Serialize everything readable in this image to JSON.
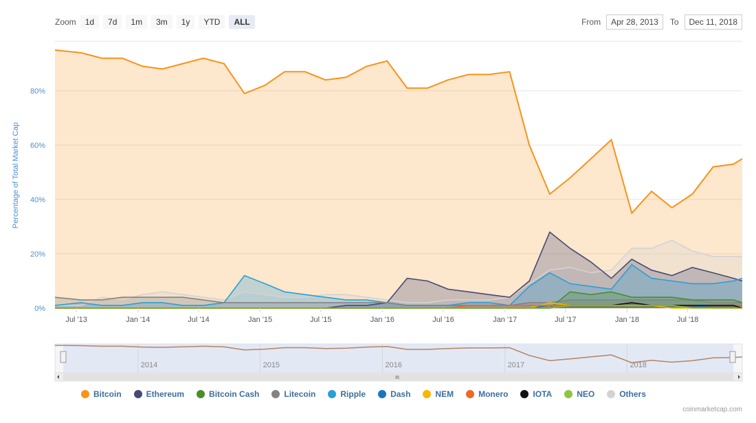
{
  "toolbar": {
    "zoom_label": "Zoom",
    "zoom_buttons": [
      "1d",
      "7d",
      "1m",
      "3m",
      "1y",
      "YTD",
      "ALL"
    ],
    "active_zoom": "ALL",
    "from_label": "From",
    "from_value": "Apr 28, 2013",
    "to_label": "To",
    "to_value": "Dec 11, 2018"
  },
  "credit": "coinmarketcap.com",
  "navigator": {
    "year_labels": [
      "2014",
      "2015",
      "2016",
      "2017",
      "2018"
    ],
    "scroll_grip": "III"
  },
  "chart_data": {
    "type": "area",
    "ylabel": "Percentage of Total Market Cap",
    "ylim": [
      0,
      100
    ],
    "y_ticks": [
      "0%",
      "20%",
      "40%",
      "60%",
      "80%"
    ],
    "x_ticks": [
      "Jul '13",
      "Jan '14",
      "Jul '14",
      "Jan '15",
      "Jul '15",
      "Jan '16",
      "Jul '16",
      "Jan '17",
      "Jul '17",
      "Jan '18",
      "Jul '18"
    ],
    "x": [
      "2013-05",
      "2013-07",
      "2013-09",
      "2013-11",
      "2014-01",
      "2014-03",
      "2014-05",
      "2014-07",
      "2014-09",
      "2014-11",
      "2015-01",
      "2015-03",
      "2015-05",
      "2015-07",
      "2015-09",
      "2015-11",
      "2016-01",
      "2016-03",
      "2016-05",
      "2016-07",
      "2016-09",
      "2016-11",
      "2017-01",
      "2017-03",
      "2017-05",
      "2017-07",
      "2017-09",
      "2017-11",
      "2018-01",
      "2018-03",
      "2018-05",
      "2018-07",
      "2018-09",
      "2018-11",
      "2018-12"
    ],
    "series": [
      {
        "name": "Bitcoin",
        "color": "#f7931a",
        "values": [
          95,
          94,
          92,
          92,
          89,
          88,
          90,
          92,
          90,
          79,
          82,
          87,
          87,
          84,
          85,
          89,
          91,
          81,
          81,
          84,
          86,
          86,
          87,
          60,
          42,
          48,
          55,
          62,
          35,
          43,
          37,
          42,
          52,
          53,
          55
        ]
      },
      {
        "name": "Ethereum",
        "color": "#454a75",
        "values": [
          0,
          0,
          0,
          0,
          0,
          0,
          0,
          0,
          0,
          0,
          0,
          0,
          0,
          0,
          1,
          1,
          2,
          11,
          10,
          7,
          6,
          5,
          4,
          10,
          28,
          22,
          17,
          11,
          18,
          14,
          12,
          15,
          13,
          11,
          10
        ]
      },
      {
        "name": "Bitcoin Cash",
        "color": "#4c8c2b",
        "values": [
          0,
          0,
          0,
          0,
          0,
          0,
          0,
          0,
          0,
          0,
          0,
          0,
          0,
          0,
          0,
          0,
          0,
          0,
          0,
          0,
          0,
          0,
          0,
          0,
          0,
          6,
          5,
          6,
          4,
          4,
          4,
          3,
          3,
          3,
          2
        ]
      },
      {
        "name": "Litecoin",
        "color": "#838383",
        "values": [
          4,
          3,
          3,
          4,
          4,
          4,
          4,
          3,
          2,
          2,
          2,
          2,
          2,
          2,
          2,
          2,
          2,
          1,
          1,
          1,
          1,
          1,
          1,
          2,
          2,
          3,
          3,
          3,
          3,
          3,
          3,
          3,
          2,
          2,
          2
        ]
      },
      {
        "name": "Ripple",
        "color": "#2a9fd6",
        "values": [
          1,
          2,
          1,
          1,
          2,
          2,
          1,
          1,
          2,
          12,
          9,
          6,
          5,
          4,
          3,
          3,
          2,
          1,
          1,
          1,
          2,
          2,
          1,
          8,
          13,
          9,
          8,
          7,
          16,
          11,
          10,
          9,
          9,
          10,
          11
        ]
      },
      {
        "name": "Dash",
        "color": "#1c75bc",
        "values": [
          0,
          0,
          0,
          0,
          0,
          0,
          0,
          0,
          0,
          0,
          0,
          0,
          0,
          0,
          0,
          0,
          0,
          0,
          0,
          0,
          0,
          0,
          0,
          0,
          1,
          1,
          1,
          1,
          1,
          1,
          1,
          1,
          0,
          0,
          0
        ]
      },
      {
        "name": "NEM",
        "color": "#f5b700",
        "values": [
          0,
          0,
          0,
          0,
          0,
          0,
          0,
          0,
          0,
          0,
          0,
          0,
          0,
          0,
          0,
          0,
          0,
          0,
          0,
          0,
          0,
          0,
          0,
          0,
          2,
          1,
          1,
          1,
          1,
          1,
          0,
          0,
          0,
          0,
          0
        ]
      },
      {
        "name": "Monero",
        "color": "#f26822",
        "values": [
          0,
          0,
          0,
          0,
          0,
          0,
          0,
          0,
          0,
          0,
          0,
          0,
          0,
          0,
          0,
          0,
          0,
          0,
          0,
          0,
          1,
          1,
          1,
          1,
          1,
          1,
          1,
          1,
          1,
          1,
          1,
          1,
          1,
          1,
          1
        ]
      },
      {
        "name": "IOTA",
        "color": "#111111",
        "values": [
          0,
          0,
          0,
          0,
          0,
          0,
          0,
          0,
          0,
          0,
          0,
          0,
          0,
          0,
          0,
          0,
          0,
          0,
          0,
          0,
          0,
          0,
          0,
          0,
          0,
          1,
          1,
          1,
          2,
          1,
          1,
          1,
          1,
          1,
          0
        ]
      },
      {
        "name": "NEO",
        "color": "#8cc63f",
        "values": [
          0,
          0,
          0,
          0,
          0,
          0,
          0,
          0,
          0,
          0,
          0,
          0,
          0,
          0,
          0,
          0,
          0,
          0,
          0,
          0,
          0,
          0,
          0,
          0,
          0,
          1,
          1,
          1,
          1,
          1,
          1,
          0,
          0,
          0,
          0
        ]
      },
      {
        "name": "Others",
        "color": "#d3d3d3",
        "values": [
          1,
          1,
          4,
          3,
          5,
          6,
          5,
          4,
          3,
          6,
          5,
          4,
          4,
          5,
          5,
          4,
          3,
          2,
          2,
          3,
          3,
          3,
          4,
          9,
          14,
          15,
          13,
          14,
          22,
          22,
          25,
          21,
          19,
          19,
          19
        ]
      }
    ]
  }
}
